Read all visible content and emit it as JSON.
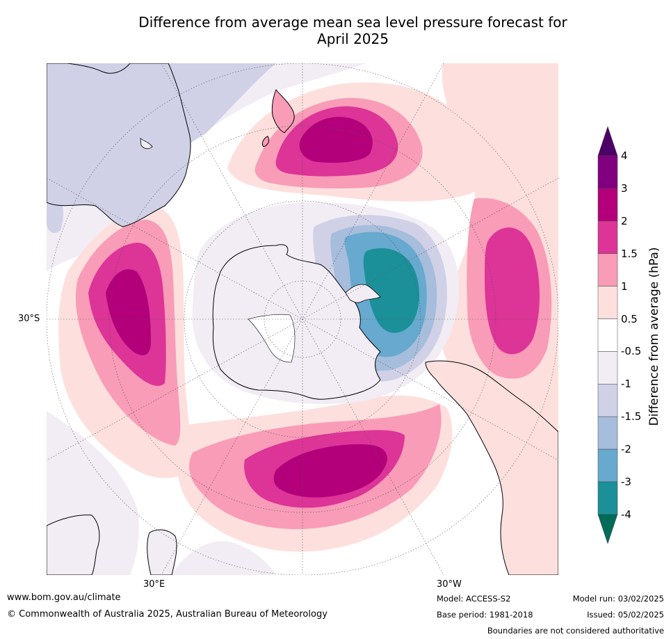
{
  "title_line1": "Difference from average mean sea level pressure forecast for",
  "title_line2": "April 2025",
  "map": {
    "projection": "south-polar-stereographic",
    "labels": {
      "lat_30s": "30°S",
      "lon_30e": "30°E",
      "lon_30w": "30°W"
    }
  },
  "colorbar": {
    "title": "Difference from average (hPa)",
    "ticks": [
      "4",
      "3",
      "2",
      "1.5",
      "1",
      "0.5",
      "-0.5",
      "-1",
      "-1.5",
      "-2",
      "-3",
      "-4"
    ],
    "colors": {
      "above_4": "#4d0066",
      "3_4": "#800080",
      "2_3": "#b3007a",
      "1.5_2": "#dd3497",
      "1_1.5": "#f99cb8",
      "0.5_1": "#fde0dd",
      "-0.5_0.5": "#ffffff",
      "-1_-0.5": "#f2ecf5",
      "-1.5_-1": "#d0d1e6",
      "-2_-1.5": "#a6bddb",
      "-3_-2": "#67a9cf",
      "-4_-3": "#1c9099",
      "below_-4": "#016c59"
    }
  },
  "footer": {
    "website": "www.bom.gov.au/climate",
    "copyright": "© Commonwealth of Australia 2025, Australian Bureau of Meteorology",
    "model": "Model: ACCESS-S2",
    "base_period": "Base period: 1981-2018",
    "model_run": "Model run: 03/02/2025",
    "issued": "Issued: 05/02/2025",
    "disclaimer": "Boundaries are not considered authoritative"
  }
}
